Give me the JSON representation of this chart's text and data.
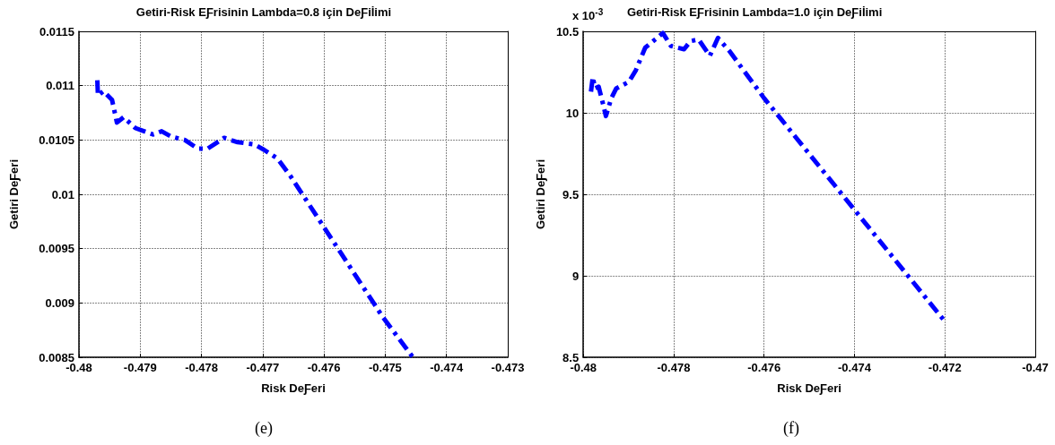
{
  "chart_data": [
    {
      "type": "line",
      "title": "Getiri-Risk EƑrisinin Lambda=0.8 için DeƑiİimi",
      "xlabel": "Risk DeƑeri",
      "ylabel": "Getiri DeƑeri",
      "annotations": [
        "(e)"
      ],
      "series": [
        {
          "color": "#0000ff",
          "x": [
            -0.4797,
            -0.47969,
            -0.4796,
            -0.47946,
            -0.47938,
            -0.47927,
            -0.47908,
            -0.47879,
            -0.47865,
            -0.47849,
            -0.47827,
            -0.47806,
            -0.4779,
            -0.47763,
            -0.47741,
            -0.47714,
            -0.47698,
            -0.47676,
            -0.47655,
            -0.47504,
            -0.47455
          ],
          "values": [
            0.01105,
            0.01091,
            0.01095,
            0.01087,
            0.01066,
            0.01071,
            0.01061,
            0.01055,
            0.01058,
            0.01053,
            0.0105,
            0.01042,
            0.01042,
            0.01052,
            0.01048,
            0.01046,
            0.01041,
            0.01033,
            0.01017,
            0.00887,
            0.0085
          ]
        }
      ],
      "xlim": [
        -0.48,
        -0.473
      ],
      "xticks": [
        -0.48,
        -0.479,
        -0.478,
        -0.477,
        -0.476,
        -0.475,
        -0.474,
        -0.473
      ],
      "ylim": [
        0.0085,
        0.0115
      ],
      "yticks": [
        0.0085,
        0.009,
        0.0095,
        0.01,
        0.0105,
        0.011,
        0.0115
      ],
      "grid": true,
      "marker": "none",
      "line_style": "dashed"
    },
    {
      "type": "line",
      "title": "Getiri-Risk EƑrisinin Lambda=1.0 için DeƑiİimi",
      "xlabel": "Risk DeƑeri",
      "ylabel": "Getiri DeƑeri",
      "annotations": [
        "x 10$^{-3}$",
        "(f)"
      ],
      "series": [
        {
          "color": "#0000ff",
          "x": [
            -0.47983,
            -0.47979,
            -0.47974,
            -0.47966,
            -0.47956,
            -0.4795,
            -0.47938,
            -0.47927,
            -0.47899,
            -0.47884,
            -0.47863,
            -0.47841,
            -0.47824,
            -0.47806,
            -0.47777,
            -0.47763,
            -0.47745,
            -0.4772,
            -0.47702,
            -0.47677,
            -0.476,
            -0.472
          ],
          "values": [
            10.13,
            10.22,
            10.15,
            10.16,
            10.05,
            9.98,
            10.09,
            10.15,
            10.19,
            10.26,
            10.4,
            10.45,
            10.49,
            10.41,
            10.39,
            10.44,
            10.45,
            10.35,
            10.46,
            10.38,
            10.09,
            8.72
          ]
        }
      ],
      "xlim": [
        -0.48,
        -0.47
      ],
      "xticks": [
        -0.48,
        -0.478,
        -0.476,
        -0.474,
        -0.472,
        -0.47
      ],
      "ylim": [
        8.5,
        10.5
      ],
      "yticks": [
        8.5,
        9,
        9.5,
        10,
        10.5
      ],
      "grid": true,
      "marker": "none",
      "line_style": "dashed"
    }
  ]
}
